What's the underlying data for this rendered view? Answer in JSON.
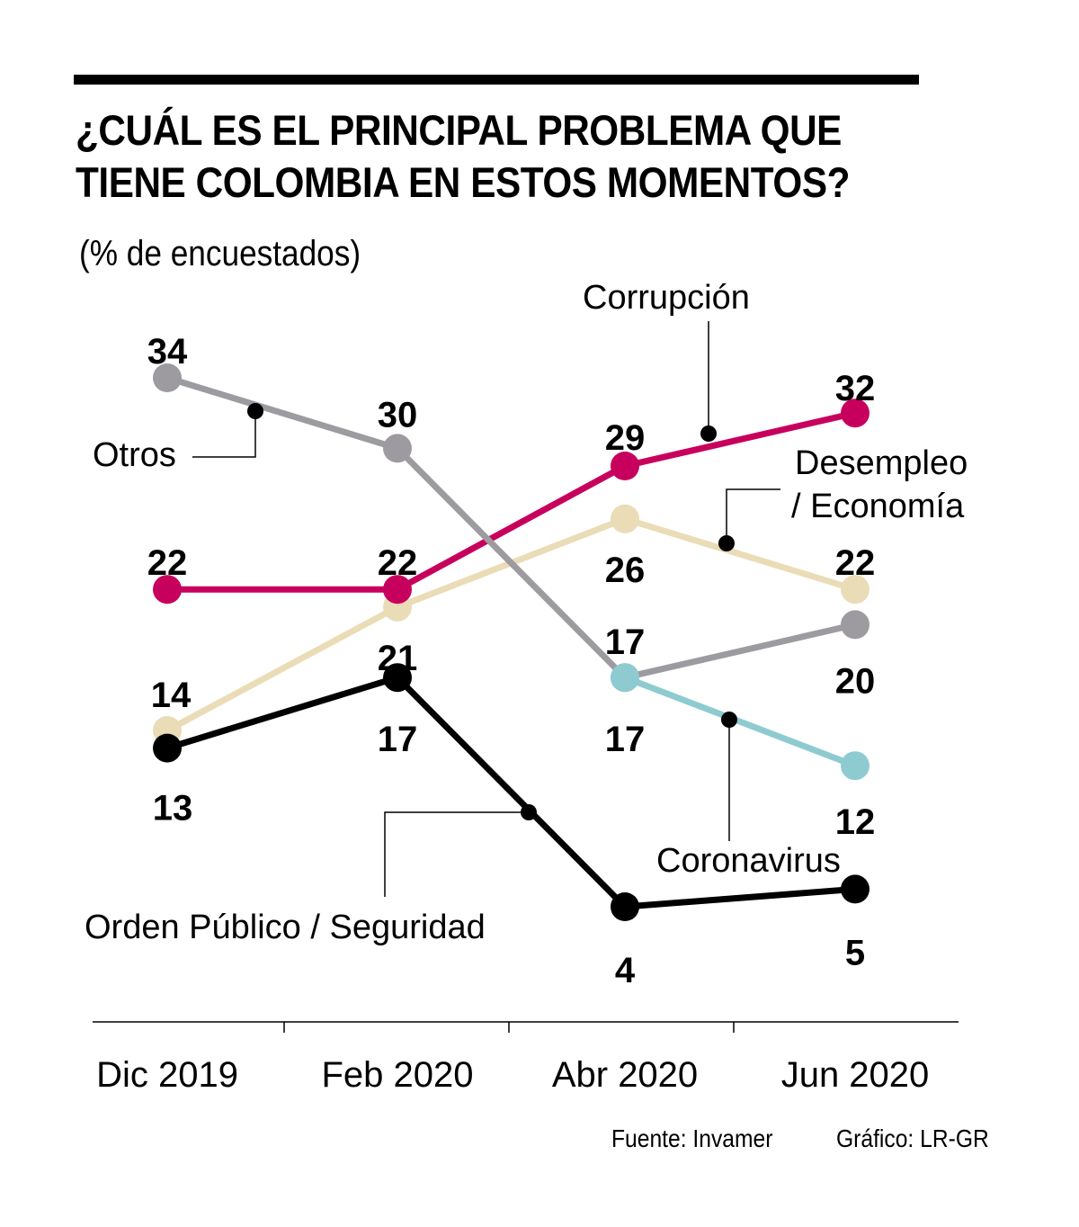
{
  "chart_data": {
    "type": "line",
    "title": "¿CUÁL ES EL PRINCIPAL PROBLEMA QUE TIENE COLOMBIA EN ESTOS MOMENTOS?",
    "title_lines": [
      "¿CUÁL ES EL PRINCIPAL PROBLEMA QUE",
      "TIENE COLOMBIA EN ESTOS MOMENTOS?"
    ],
    "subtitle": "(% de encuestados)",
    "xlabel": "",
    "ylabel": "% de encuestados",
    "x": [
      "Dic 2019",
      "Feb 2020",
      "Abr 2020",
      "Jun 2020"
    ],
    "ylim": [
      4,
      34
    ],
    "grid": false,
    "legend": "inline-labels",
    "series": [
      {
        "name": "Otros",
        "color": "#9d9b9f",
        "values": [
          34,
          30,
          17,
          20
        ]
      },
      {
        "name": "Corrupción",
        "color": "#c8005d",
        "values": [
          22,
          22,
          29,
          32
        ]
      },
      {
        "name": "Desempleo / Economía",
        "label_lines": [
          "Desempleo",
          "/ Economía"
        ],
        "color": "#eadcb6",
        "values": [
          14,
          21,
          26,
          22
        ]
      },
      {
        "name": "Coronavirus",
        "color": "#8ecbd1",
        "values": [
          null,
          null,
          17,
          12
        ]
      },
      {
        "name": "Orden Público / Seguridad",
        "color": "#000000",
        "values": [
          13,
          17,
          4,
          5
        ]
      }
    ]
  },
  "footer": {
    "source": "Fuente: Invamer",
    "credit": "Gráfico: LR-GR"
  }
}
